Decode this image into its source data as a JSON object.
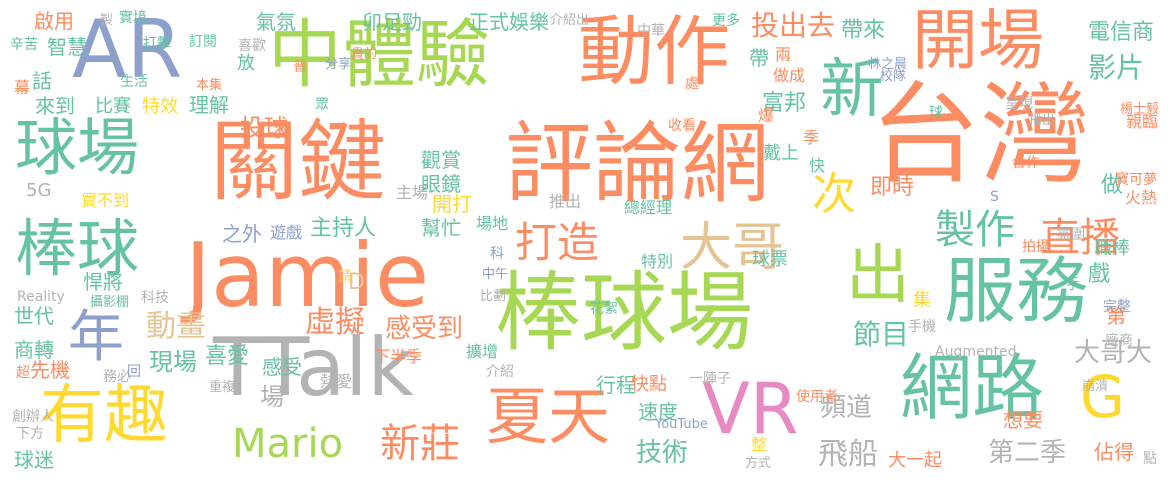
{
  "colors": {
    "orange": "#fc8d62",
    "teal": "#66c2a5",
    "purple": "#8da0cb",
    "pink": "#e78ac3",
    "green": "#a6d854",
    "yellow": "#ffd92f",
    "tan": "#e5c494",
    "gray": "#b3b3b3"
  },
  "words": [
    {
      "text": "台灣",
      "color": "orange",
      "vertical": false
    },
    {
      "text": "評論網",
      "color": "orange",
      "vertical": false
    },
    {
      "text": "關鍵",
      "color": "orange",
      "vertical": false
    },
    {
      "text": "Jamie",
      "color": "orange",
      "vertical": false
    },
    {
      "text": "棒球場",
      "color": "green",
      "vertical": false
    },
    {
      "text": "中體驗",
      "color": "green",
      "vertical": false
    },
    {
      "text": "動作",
      "color": "orange",
      "vertical": false
    },
    {
      "text": "TTalk",
      "color": "gray",
      "vertical": false
    },
    {
      "text": "AR",
      "color": "purple",
      "vertical": false
    },
    {
      "text": "開場",
      "color": "orange",
      "vertical": false
    },
    {
      "text": "球場",
      "color": "teal",
      "vertical": false
    },
    {
      "text": "棒球",
      "color": "teal",
      "vertical": false
    },
    {
      "text": "服務",
      "color": "teal",
      "vertical": false
    },
    {
      "text": "網路",
      "color": "teal",
      "vertical": false
    },
    {
      "text": "有趣",
      "color": "yellow",
      "vertical": false
    },
    {
      "text": "VR",
      "color": "pink",
      "vertical": false
    },
    {
      "text": "夏天",
      "color": "orange",
      "vertical": false
    },
    {
      "text": "新",
      "color": "teal",
      "vertical": false
    },
    {
      "text": "出",
      "color": "green",
      "vertical": false
    },
    {
      "text": "G",
      "color": "yellow",
      "vertical": false
    },
    {
      "text": "年",
      "color": "purple",
      "vertical": false
    },
    {
      "text": "大哥",
      "color": "tan",
      "vertical": false
    },
    {
      "text": "次",
      "color": "yellow",
      "vertical": false
    },
    {
      "text": "Mario",
      "color": "green",
      "vertical": false
    },
    {
      "text": "打造",
      "color": "orange",
      "vertical": false
    },
    {
      "text": "製作",
      "color": "teal",
      "vertical": false
    },
    {
      "text": "直播",
      "color": "orange",
      "vertical": false
    },
    {
      "text": "新莊",
      "color": "orange",
      "vertical": false
    },
    {
      "text": "飛船",
      "color": "gray",
      "vertical": false
    },
    {
      "text": "虛擬",
      "color": "orange",
      "vertical": false
    },
    {
      "text": "動畫",
      "color": "tan",
      "vertical": false
    },
    {
      "text": "投出去",
      "color": "orange",
      "vertical": false
    },
    {
      "text": "第二季",
      "color": "gray",
      "vertical": false
    },
    {
      "text": "感受到",
      "color": "orange",
      "vertical": false
    },
    {
      "text": "影片",
      "color": "teal",
      "vertical": false
    },
    {
      "text": "技術",
      "color": "teal",
      "vertical": false
    },
    {
      "text": "頻道",
      "color": "gray",
      "vertical": false
    },
    {
      "text": "大哥大",
      "color": "gray",
      "vertical": false
    },
    {
      "text": "節目",
      "color": "teal",
      "vertical": false
    },
    {
      "text": "投球",
      "color": "orange",
      "vertical": false
    },
    {
      "text": "現場",
      "color": "teal",
      "vertical": false
    },
    {
      "text": "電信商",
      "color": "teal",
      "vertical": false
    },
    {
      "text": "娛樂",
      "color": "teal",
      "vertical": false
    },
    {
      "text": "正式",
      "color": "teal",
      "vertical": false
    },
    {
      "text": "卯足勁",
      "color": "teal",
      "vertical": false
    },
    {
      "text": "氣氛",
      "color": "teal",
      "vertical": false
    },
    {
      "text": "帶來",
      "color": "teal",
      "vertical": false
    },
    {
      "text": "富邦",
      "color": "teal",
      "vertical": false
    },
    {
      "text": "即時",
      "color": "orange",
      "vertical": false
    },
    {
      "text": "喜愛",
      "color": "teal",
      "vertical": false
    },
    {
      "text": "幫忙",
      "color": "teal",
      "vertical": false
    },
    {
      "text": "主持人",
      "color": "teal",
      "vertical": false
    },
    {
      "text": "觀賞",
      "color": "teal",
      "vertical": false
    },
    {
      "text": "眼鏡",
      "color": "teal",
      "vertical": false
    },
    {
      "text": "主場",
      "color": "gray",
      "vertical": false
    },
    {
      "text": "開打",
      "color": "yellow",
      "vertical": false
    },
    {
      "text": "比賽",
      "color": "teal",
      "vertical": false
    },
    {
      "text": "特效",
      "color": "yellow",
      "vertical": false
    },
    {
      "text": "理解",
      "color": "teal",
      "vertical": false
    },
    {
      "text": "啟用",
      "color": "orange",
      "vertical": false
    },
    {
      "text": "實境",
      "color": "teal",
      "vertical": false
    },
    {
      "text": "智慧",
      "color": "teal",
      "vertical": false
    },
    {
      "text": "話",
      "color": "teal",
      "vertical": false
    },
    {
      "text": "來到",
      "color": "teal",
      "vertical": false
    },
    {
      "text": "買不到",
      "color": "yellow",
      "vertical": false
    },
    {
      "text": "悍將",
      "color": "teal",
      "vertical": false
    },
    {
      "text": "世代",
      "color": "teal",
      "vertical": false
    },
    {
      "text": "商轉",
      "color": "teal",
      "vertical": false
    },
    {
      "text": "先機",
      "color": "orange",
      "vertical": false
    },
    {
      "text": "球迷",
      "color": "teal",
      "vertical": false
    },
    {
      "text": "大一起",
      "color": "orange",
      "vertical": false
    },
    {
      "text": "佔得",
      "color": "orange",
      "vertical": false
    },
    {
      "text": "想要",
      "color": "orange",
      "vertical": false
    },
    {
      "text": "行程",
      "color": "teal",
      "vertical": false
    },
    {
      "text": "速度",
      "color": "teal",
      "vertical": false
    },
    {
      "text": "快點",
      "color": "orange",
      "vertical": false
    },
    {
      "text": "場",
      "color": "gray",
      "vertical": false
    },
    {
      "text": "職棒",
      "color": "teal",
      "vertical": false
    },
    {
      "text": "做",
      "color": "teal",
      "vertical": false
    },
    {
      "text": "戲",
      "color": "teal",
      "vertical": false
    },
    {
      "text": "第",
      "color": "orange",
      "vertical": false
    },
    {
      "text": "集",
      "color": "yellow",
      "vertical": false
    },
    {
      "text": "球票",
      "color": "teal",
      "vertical": false
    },
    {
      "text": "戴上",
      "color": "teal",
      "vertical": false
    },
    {
      "text": "帶",
      "color": "teal",
      "vertical": false
    },
    {
      "text": "放",
      "color": "teal",
      "vertical": false
    },
    {
      "text": "5G",
      "color": "gray",
      "vertical": false
    },
    {
      "text": "Augmented",
      "color": "gray",
      "vertical": false
    },
    {
      "text": "Reality",
      "color": "gray",
      "vertical": false
    },
    {
      "text": "YouTube",
      "color": "purple",
      "vertical": false
    },
    {
      "text": "D",
      "color": "tan",
      "vertical": false
    },
    {
      "text": "之外",
      "color": "purple",
      "vertical": false
    },
    {
      "text": "遊戲",
      "color": "purple",
      "vertical": false
    },
    {
      "text": "下半季",
      "color": "orange",
      "vertical": false
    },
    {
      "text": "擴增",
      "color": "teal",
      "vertical": false
    },
    {
      "text": "熱愛",
      "color": "gray",
      "vertical": false
    },
    {
      "text": "感受",
      "color": "teal",
      "vertical": false
    },
    {
      "text": "重複",
      "color": "gray",
      "vertical": false
    },
    {
      "text": "務必",
      "color": "gray",
      "vertical": false
    },
    {
      "text": "回",
      "color": "purple",
      "vertical": false
    },
    {
      "text": "推出",
      "color": "gray",
      "vertical": false
    },
    {
      "text": "總經理",
      "color": "teal",
      "vertical": false
    },
    {
      "text": "場地",
      "color": "teal",
      "vertical": false
    },
    {
      "text": "科",
      "color": "purple",
      "vertical": false
    },
    {
      "text": "中午",
      "color": "purple",
      "vertical": false
    },
    {
      "text": "比劃",
      "color": "gray",
      "vertical": false
    },
    {
      "text": "介紹",
      "color": "gray",
      "vertical": false
    },
    {
      "text": "花絮",
      "color": "teal",
      "vertical": false
    },
    {
      "text": "一陣子",
      "color": "gray",
      "vertical": false
    },
    {
      "text": "使用者",
      "color": "orange",
      "vertical": false
    },
    {
      "text": "崩潰",
      "color": "gray",
      "vertical": false
    },
    {
      "text": "手機",
      "color": "gray",
      "vertical": false
    },
    {
      "text": "完整",
      "color": "purple",
      "vertical": false
    },
    {
      "text": "廠商",
      "color": "gray",
      "vertical": false
    },
    {
      "text": "氛圍",
      "color": "gray",
      "vertical": false
    },
    {
      "text": "拍攝",
      "color": "orange",
      "vertical": false
    },
    {
      "text": "火熱",
      "color": "orange",
      "vertical": false
    },
    {
      "text": "寶可夢",
      "color": "orange",
      "vertical": false
    },
    {
      "text": "合作",
      "color": "orange",
      "vertical": false
    },
    {
      "text": "播出",
      "color": "gray",
      "vertical": false
    },
    {
      "text": "呈現",
      "color": "gray",
      "vertical": false
    },
    {
      "text": "親臨",
      "color": "orange",
      "vertical": false
    },
    {
      "text": "楊士毅",
      "color": "orange",
      "vertical": false
    },
    {
      "text": "林之晨",
      "color": "purple",
      "vertical": false
    },
    {
      "text": "校隊",
      "color": "purple",
      "vertical": false
    },
    {
      "text": "做成",
      "color": "orange",
      "vertical": false
    },
    {
      "text": "兩",
      "color": "orange",
      "vertical": false
    },
    {
      "text": "更多",
      "color": "teal",
      "vertical": false
    },
    {
      "text": "中華",
      "color": "gray",
      "vertical": false
    },
    {
      "text": "介紹出",
      "color": "gray",
      "vertical": false
    },
    {
      "text": "貴的",
      "color": "orange",
      "vertical": false
    },
    {
      "text": "分享",
      "color": "purple",
      "vertical": false
    },
    {
      "text": "喜歡",
      "color": "gray",
      "vertical": false
    },
    {
      "text": "訂閱",
      "color": "teal",
      "vertical": false
    },
    {
      "text": "打擊",
      "color": "teal",
      "vertical": false
    },
    {
      "text": "生活",
      "color": "teal",
      "vertical": false
    },
    {
      "text": "本集",
      "color": "orange",
      "vertical": false
    },
    {
      "text": "辛苦",
      "color": "teal",
      "vertical": false
    },
    {
      "text": "製",
      "color": "gray",
      "vertical": false
    },
    {
      "text": "幕",
      "color": "orange",
      "vertical": false
    },
    {
      "text": "攝影棚",
      "color": "teal",
      "vertical": false
    },
    {
      "text": "科技",
      "color": "gray",
      "vertical": false
    },
    {
      "text": "創辦人",
      "color": "gray",
      "vertical": false
    },
    {
      "text": "下方",
      "color": "gray",
      "vertical": false
    },
    {
      "text": "超",
      "color": "orange",
      "vertical": false
    },
    {
      "text": "請",
      "color": "yellow",
      "vertical": false
    },
    {
      "text": "普",
      "color": "orange",
      "vertical": false
    },
    {
      "text": "處",
      "color": "orange",
      "vertical": false
    },
    {
      "text": "收看",
      "color": "orange",
      "vertical": false
    },
    {
      "text": "爆",
      "color": "orange",
      "vertical": false
    },
    {
      "text": "特別",
      "color": "teal",
      "vertical": false
    },
    {
      "text": "季",
      "color": "orange",
      "vertical": false
    },
    {
      "text": "快",
      "color": "teal",
      "vertical": false
    },
    {
      "text": "方式",
      "color": "gray",
      "vertical": false
    },
    {
      "text": "整",
      "color": "yellow",
      "vertical": false
    },
    {
      "text": "點",
      "color": "gray",
      "vertical": false
    },
    {
      "text": "球",
      "color": "teal",
      "vertical": false
    },
    {
      "text": "S",
      "color": "purple",
      "vertical": false
    },
    {
      "text": "眾",
      "color": "teal",
      "vertical": false
    },
    {
      "text": "手",
      "color": "teal",
      "vertical": false
    }
  ]
}
